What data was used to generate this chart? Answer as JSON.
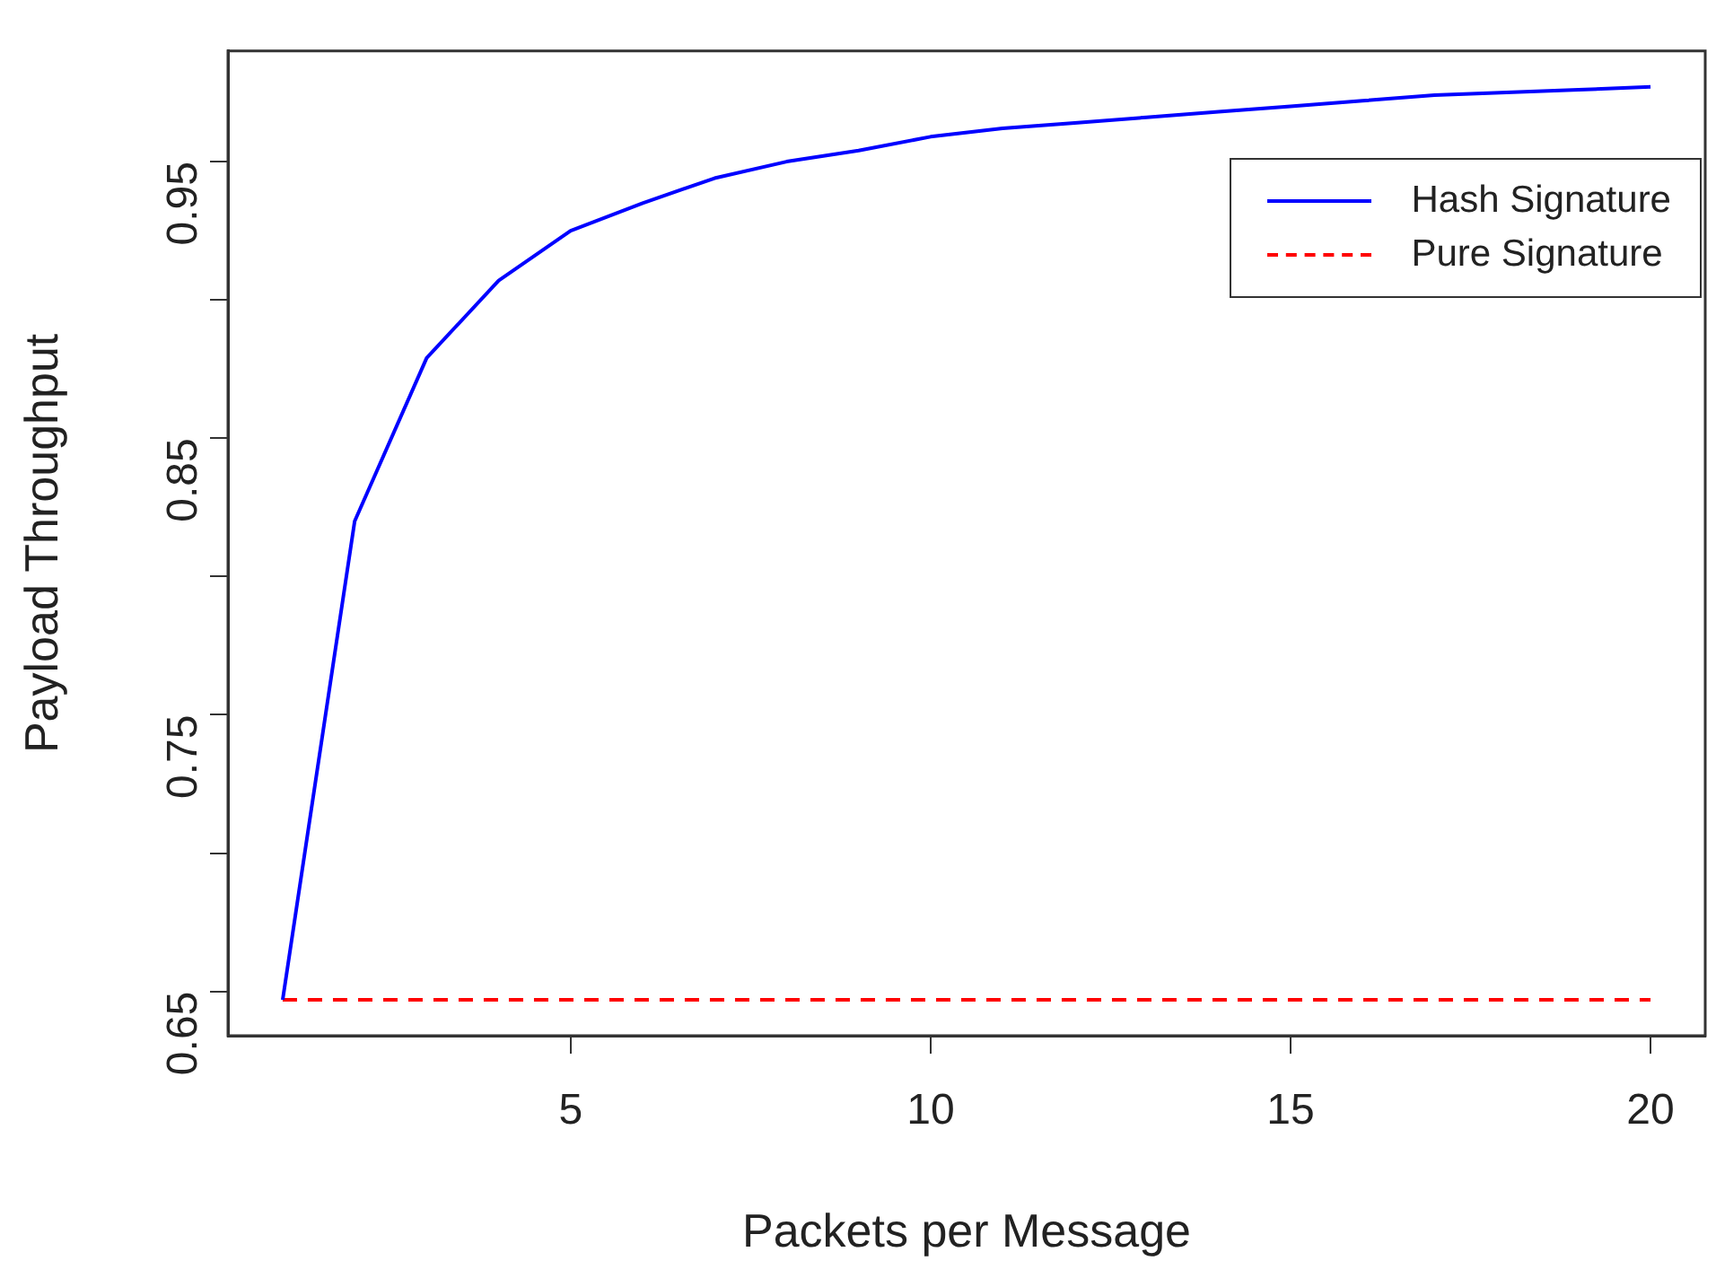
{
  "chart_data": {
    "type": "line",
    "xlabel": "Packets per Message",
    "ylabel": "Payload Throughput",
    "x": [
      1,
      2,
      3,
      4,
      5,
      6,
      7,
      8,
      9,
      10,
      11,
      12,
      13,
      14,
      15,
      16,
      17,
      18,
      19,
      20
    ],
    "series": [
      {
        "name": "Hash Signature",
        "color": "#0000ff",
        "line_style": "solid",
        "values": [
          0.647,
          0.82,
          0.879,
          0.907,
          0.925,
          0.935,
          0.944,
          0.95,
          0.954,
          0.959,
          0.962,
          0.964,
          0.966,
          0.968,
          0.97,
          0.972,
          0.974,
          0.975,
          0.976,
          0.977
        ]
      },
      {
        "name": "Pure Signature",
        "color": "#ff0000",
        "line_style": "dashed",
        "values": [
          0.647,
          0.647,
          0.647,
          0.647,
          0.647,
          0.647,
          0.647,
          0.647,
          0.647,
          0.647,
          0.647,
          0.647,
          0.647,
          0.647,
          0.647,
          0.647,
          0.647,
          0.647,
          0.647,
          0.647
        ]
      }
    ],
    "xlim": [
      0.24,
      20.76
    ],
    "ylim": [
      0.634,
      0.99
    ],
    "xticks": [
      5,
      10,
      15,
      20
    ],
    "yticks": [
      0.65,
      {
        "value": 0.7,
        "label": null
      },
      0.75,
      {
        "value": 0.8,
        "label": null
      },
      0.85,
      {
        "value": 0.9,
        "label": null
      },
      0.95
    ],
    "marker": "none",
    "legend": "top right"
  }
}
